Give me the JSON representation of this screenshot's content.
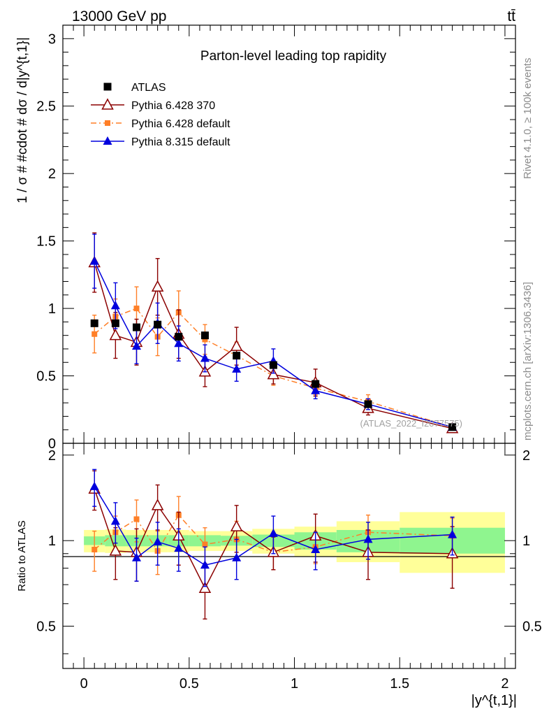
{
  "header": {
    "energy_label": "13000 GeV pp",
    "process_label": "tt̄"
  },
  "side_labels": {
    "rivet": "Rivet 4.1.0, ≥ 100k events",
    "mcplots": "mcplots.cern.ch [arXiv:1306.3436]"
  },
  "watermark": "(ATLAS_2022_I2077575)",
  "colors": {
    "atlas": "#000000",
    "py6_370": "#8b0000",
    "py6_default": "#ff7f27",
    "py8": "#0000dd",
    "band_green": "#8ff58f",
    "band_yellow": "#ffff99"
  },
  "chart_data": [
    {
      "type": "line",
      "title": "Parton-level leading top rapidity",
      "xlabel": "",
      "ylabel": "1 / σ # #cdot # dσ / d|y^{t,1}|",
      "xlim": [
        -0.1,
        2.05
      ],
      "ylim": [
        0,
        3.1
      ],
      "yticks": [
        "0",
        "0.5",
        "1",
        "1.5",
        "2",
        "2.5",
        "3"
      ],
      "legend_position": "top-left",
      "bins": [
        [
          0,
          0.1
        ],
        [
          0.1,
          0.2
        ],
        [
          0.2,
          0.3
        ],
        [
          0.3,
          0.4
        ],
        [
          0.4,
          0.5
        ],
        [
          0.5,
          0.65
        ],
        [
          0.65,
          0.8
        ],
        [
          0.8,
          1.0
        ],
        [
          1.0,
          1.2
        ],
        [
          1.2,
          1.5
        ],
        [
          1.5,
          2.0
        ]
      ],
      "series": [
        {
          "name": "ATLAS",
          "x": [
            0.05,
            0.15,
            0.25,
            0.35,
            0.45,
            0.575,
            0.725,
            0.9,
            1.1,
            1.35,
            1.75
          ],
          "values": [
            0.89,
            0.89,
            0.86,
            0.88,
            0.79,
            0.8,
            0.65,
            0.58,
            0.44,
            0.29,
            0.12
          ]
        },
        {
          "name": "Pythia 6.428 370",
          "x": [
            0.05,
            0.15,
            0.25,
            0.35,
            0.45,
            0.575,
            0.725,
            0.9,
            1.1,
            1.35,
            1.75
          ],
          "values": [
            1.34,
            0.8,
            0.75,
            1.16,
            0.81,
            0.53,
            0.72,
            0.51,
            0.45,
            0.26,
            0.11
          ],
          "errors": [
            0.22,
            0.17,
            0.17,
            0.21,
            0.18,
            0.11,
            0.14,
            0.07,
            0.1,
            0.05,
            0.03
          ]
        },
        {
          "name": "Pythia 6.428 default",
          "x": [
            0.05,
            0.15,
            0.25,
            0.35,
            0.45,
            0.575,
            0.725,
            0.9,
            1.1,
            1.35,
            1.75
          ],
          "values": [
            0.81,
            0.94,
            1.0,
            0.79,
            0.97,
            0.77,
            0.65,
            0.5,
            0.41,
            0.31,
            0.12
          ],
          "errors": [
            0.14,
            0.13,
            0.16,
            0.14,
            0.16,
            0.11,
            0.1,
            0.07,
            0.05,
            0.05,
            0.02
          ]
        },
        {
          "name": "Pythia 8.315 default",
          "x": [
            0.05,
            0.15,
            0.25,
            0.35,
            0.45,
            0.575,
            0.725,
            0.9,
            1.1,
            1.35,
            1.75
          ],
          "values": [
            1.35,
            1.02,
            0.72,
            0.89,
            0.74,
            0.63,
            0.55,
            0.61,
            0.39,
            0.29,
            0.12
          ],
          "errors": [
            0.2,
            0.17,
            0.13,
            0.15,
            0.13,
            0.1,
            0.09,
            0.09,
            0.06,
            0.04,
            0.02
          ]
        }
      ]
    },
    {
      "type": "line",
      "title": "",
      "xlabel": "|y^{t,1}|",
      "ylabel": "Ratio to ATLAS",
      "xlim": [
        -0.1,
        2.05
      ],
      "ylim_log": [
        0.355,
        2.2
      ],
      "yticks": [
        "0.5",
        "1",
        "2"
      ],
      "xticks": [
        "0",
        "0.5",
        "1",
        "1.5",
        "2"
      ],
      "bands": {
        "green_stat": [
          [
            0.965,
            1.035
          ],
          [
            0.955,
            1.045
          ],
          [
            0.955,
            1.045
          ],
          [
            0.955,
            1.045
          ],
          [
            0.955,
            1.045
          ],
          [
            0.955,
            1.045
          ],
          [
            0.96,
            1.04
          ],
          [
            0.95,
            1.05
          ],
          [
            0.93,
            1.07
          ],
          [
            0.91,
            1.09
          ],
          [
            0.9,
            1.11
          ]
        ],
        "yellow_total": [
          [
            0.91,
            1.09
          ],
          [
            0.905,
            1.095
          ],
          [
            0.91,
            1.09
          ],
          [
            0.91,
            1.09
          ],
          [
            0.91,
            1.09
          ],
          [
            0.92,
            1.08
          ],
          [
            0.92,
            1.08
          ],
          [
            0.9,
            1.1
          ],
          [
            0.88,
            1.12
          ],
          [
            0.84,
            1.17
          ],
          [
            0.77,
            1.26
          ]
        ]
      },
      "series": [
        {
          "name": "Pythia 6.428 370",
          "values": [
            1.52,
            0.92,
            0.91,
            1.33,
            1.04,
            0.68,
            1.12,
            0.91,
            1.04,
            0.91,
            0.9
          ],
          "errors": [
            0.24,
            0.19,
            0.19,
            0.24,
            0.22,
            0.15,
            0.21,
            0.12,
            0.2,
            0.18,
            0.22
          ]
        },
        {
          "name": "Pythia 6.428 default",
          "values": [
            0.93,
            1.07,
            1.19,
            0.92,
            1.23,
            0.97,
            1.01,
            0.91,
            0.95,
            1.07,
            1.04
          ],
          "errors": [
            0.15,
            0.15,
            0.2,
            0.16,
            0.2,
            0.14,
            0.16,
            0.12,
            0.12,
            0.16,
            0.16
          ]
        },
        {
          "name": "Pythia 8.315 default",
          "values": [
            1.55,
            1.17,
            0.87,
            0.99,
            0.94,
            0.82,
            0.87,
            1.06,
            0.93,
            1.01,
            1.05
          ],
          "errors": [
            0.23,
            0.19,
            0.15,
            0.17,
            0.16,
            0.13,
            0.14,
            0.16,
            0.14,
            0.15,
            0.16
          ]
        }
      ]
    }
  ]
}
